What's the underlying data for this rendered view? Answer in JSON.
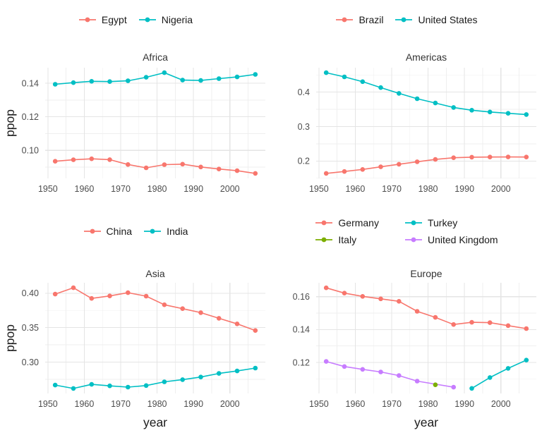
{
  "figure": {
    "ylabel": "ppop",
    "xlabel": "year",
    "background": "#FFFFFF",
    "grid_major_color": "#E4E4E4",
    "grid_minor_color": "#EFEFEF",
    "axis_text_color": "#4D4D4D",
    "title_text_color": "#333333",
    "legend_text_color": "#1A1A1A",
    "palette": {
      "red": "#F8766D",
      "green": "#7CAE00",
      "teal": "#00BFC4",
      "purple": "#C77CFF"
    }
  },
  "chart_data": [
    {
      "type": "line",
      "facet": "Africa",
      "legend_position": "top",
      "legend_columns": 1,
      "show_ylabel": true,
      "show_xlabel": false,
      "xlim": [
        1949.25,
        2009.75
      ],
      "ylim": [
        0.0833,
        0.1493
      ],
      "x_ticks": {
        "values": [
          1950,
          1960,
          1970,
          1980,
          1990,
          2000
        ],
        "labels": [
          "1950",
          "1960",
          "1970",
          "1980",
          "1990",
          "2000"
        ]
      },
      "x_minor": [
        1955,
        1965,
        1975,
        1985,
        1995,
        2005
      ],
      "y_ticks": {
        "values": [
          0.1,
          0.12,
          0.14
        ],
        "labels": [
          "0.10",
          "0.12",
          "0.14"
        ]
      },
      "y_minor": [
        0.09,
        0.11,
        0.13
      ],
      "series": [
        {
          "name": "Egypt",
          "color": "#F8766D",
          "points": [
            [
              1952,
              0.0935
            ],
            [
              1957,
              0.0944
            ],
            [
              1962,
              0.095
            ],
            [
              1967,
              0.0945
            ],
            [
              1972,
              0.0916
            ],
            [
              1977,
              0.0896
            ],
            [
              1982,
              0.0915
            ],
            [
              1987,
              0.0918
            ],
            [
              1992,
              0.0901
            ],
            [
              1997,
              0.0889
            ],
            [
              2002,
              0.0879
            ],
            [
              2007,
              0.0863
            ]
          ]
        },
        {
          "name": "Nigeria",
          "color": "#00BFC4",
          "points": [
            [
              1952,
              0.1394
            ],
            [
              1957,
              0.1404
            ],
            [
              1962,
              0.1412
            ],
            [
              1967,
              0.141
            ],
            [
              1972,
              0.1415
            ],
            [
              1977,
              0.1436
            ],
            [
              1982,
              0.1463
            ],
            [
              1987,
              0.1419
            ],
            [
              1992,
              0.1417
            ],
            [
              1997,
              0.1428
            ],
            [
              2002,
              0.1438
            ],
            [
              2007,
              0.1453
            ]
          ]
        }
      ]
    },
    {
      "type": "line",
      "facet": "Americas",
      "legend_position": "top",
      "legend_columns": 1,
      "show_ylabel": false,
      "show_xlabel": false,
      "xlim": [
        1949.25,
        2009.75
      ],
      "ylim": [
        0.1494,
        0.4711
      ],
      "x_ticks": {
        "values": [
          1950,
          1960,
          1970,
          1980,
          1990,
          2000
        ],
        "labels": [
          "1950",
          "1960",
          "1970",
          "1980",
          "1990",
          "2000"
        ]
      },
      "x_minor": [
        1955,
        1965,
        1975,
        1985,
        1995,
        2005
      ],
      "y_ticks": {
        "values": [
          0.2,
          0.3,
          0.4
        ],
        "labels": [
          "0.2",
          "0.3",
          "0.4"
        ]
      },
      "y_minor": [
        0.15,
        0.25,
        0.35,
        0.45
      ],
      "series": [
        {
          "name": "Brazil",
          "color": "#F8766D",
          "points": [
            [
              1952,
              0.164
            ],
            [
              1957,
              0.1694
            ],
            [
              1962,
              0.1755
            ],
            [
              1967,
              0.1831
            ],
            [
              1972,
              0.1905
            ],
            [
              1977,
              0.1977
            ],
            [
              1982,
              0.2046
            ],
            [
              1987,
              0.2094
            ],
            [
              1992,
              0.211
            ],
            [
              1997,
              0.2115
            ],
            [
              2002,
              0.2117
            ],
            [
              2007,
              0.2114
            ]
          ]
        },
        {
          "name": "United States",
          "color": "#00BFC4",
          "points": [
            [
              1952,
              0.4565
            ],
            [
              1957,
              0.4445
            ],
            [
              1962,
              0.4305
            ],
            [
              1967,
              0.4133
            ],
            [
              1972,
              0.3965
            ],
            [
              1977,
              0.381
            ],
            [
              1982,
              0.3684
            ],
            [
              1987,
              0.3556
            ],
            [
              1992,
              0.3475
            ],
            [
              1997,
              0.3425
            ],
            [
              2002,
              0.3385
            ],
            [
              2007,
              0.335
            ]
          ]
        }
      ]
    },
    {
      "type": "line",
      "facet": "Asia",
      "legend_position": "top",
      "legend_columns": 1,
      "show_ylabel": true,
      "show_xlabel": true,
      "xlim": [
        1949.25,
        2009.75
      ],
      "ylim": [
        0.2544,
        0.4152
      ],
      "x_ticks": {
        "values": [
          1950,
          1960,
          1970,
          1980,
          1990,
          2000
        ],
        "labels": [
          "1950",
          "1960",
          "1970",
          "1980",
          "1990",
          "2000"
        ]
      },
      "x_minor": [
        1955,
        1965,
        1975,
        1985,
        1995,
        2005
      ],
      "y_ticks": {
        "values": [
          0.3,
          0.35,
          0.4
        ],
        "labels": [
          "0.30",
          "0.35",
          "0.40"
        ]
      },
      "y_minor": [
        0.275,
        0.325,
        0.375
      ],
      "series": [
        {
          "name": "China",
          "color": "#F8766D",
          "points": [
            [
              1952,
              0.3987
            ],
            [
              1957,
              0.4079
            ],
            [
              1962,
              0.3925
            ],
            [
              1967,
              0.396
            ],
            [
              1972,
              0.4008
            ],
            [
              1977,
              0.3957
            ],
            [
              1982,
              0.3832
            ],
            [
              1987,
              0.3776
            ],
            [
              1992,
              0.3718
            ],
            [
              1997,
              0.3636
            ],
            [
              2002,
              0.3555
            ],
            [
              2007,
              0.3459
            ]
          ]
        },
        {
          "name": "India",
          "color": "#00BFC4",
          "points": [
            [
              1952,
              0.2666
            ],
            [
              1957,
              0.2617
            ],
            [
              1962,
              0.2676
            ],
            [
              1967,
              0.2655
            ],
            [
              1972,
              0.2636
            ],
            [
              1977,
              0.2659
            ],
            [
              1982,
              0.2713
            ],
            [
              1987,
              0.2745
            ],
            [
              1992,
              0.2783
            ],
            [
              1997,
              0.2835
            ],
            [
              2002,
              0.2871
            ],
            [
              2007,
              0.2913
            ]
          ]
        }
      ]
    },
    {
      "type": "line",
      "facet": "Europe",
      "legend_position": "top",
      "legend_columns": 2,
      "show_ylabel": false,
      "show_xlabel": true,
      "xlim": [
        1949.25,
        2009.75
      ],
      "ylim": [
        0.1011,
        0.1685
      ],
      "x_ticks": {
        "values": [
          1950,
          1960,
          1970,
          1980,
          1990,
          2000
        ],
        "labels": [
          "1950",
          "1960",
          "1970",
          "1980",
          "1990",
          "2000"
        ]
      },
      "x_minor": [
        1955,
        1965,
        1975,
        1985,
        1995,
        2005
      ],
      "y_ticks": {
        "values": [
          0.12,
          0.14,
          0.16
        ],
        "labels": [
          "0.12",
          "0.14",
          "0.16"
        ]
      },
      "y_minor": [
        0.11,
        0.13,
        0.15
      ],
      "series": [
        {
          "name": "Germany",
          "color": "#F8766D",
          "points": [
            [
              1952,
              0.1654
            ],
            [
              1957,
              0.1622
            ],
            [
              1962,
              0.1602
            ],
            [
              1967,
              0.1587
            ],
            [
              1972,
              0.1572
            ],
            [
              1977,
              0.1511
            ],
            [
              1982,
              0.1474
            ],
            [
              1987,
              0.1431
            ],
            [
              1992,
              0.1444
            ],
            [
              1997,
              0.1442
            ],
            [
              2002,
              0.1424
            ],
            [
              2007,
              0.1406
            ]
          ]
        },
        {
          "name": "Italy",
          "color": "#7CAE00",
          "points": [
            [
              1982,
              0.1064
            ]
          ]
        },
        {
          "name": "Turkey",
          "color": "#00BFC4",
          "points": [
            [
              1992,
              0.1042
            ],
            [
              1997,
              0.1108
            ],
            [
              2002,
              0.1164
            ],
            [
              2007,
              0.1214
            ]
          ]
        },
        {
          "name": "United Kingdom",
          "color": "#C77CFF",
          "points": [
            [
              1952,
              0.1206
            ],
            [
              1957,
              0.1175
            ],
            [
              1962,
              0.1158
            ],
            [
              1967,
              0.1142
            ],
            [
              1972,
              0.112
            ],
            [
              1977,
              0.1086
            ],
            [
              1987,
              0.1049
            ]
          ]
        }
      ]
    }
  ]
}
